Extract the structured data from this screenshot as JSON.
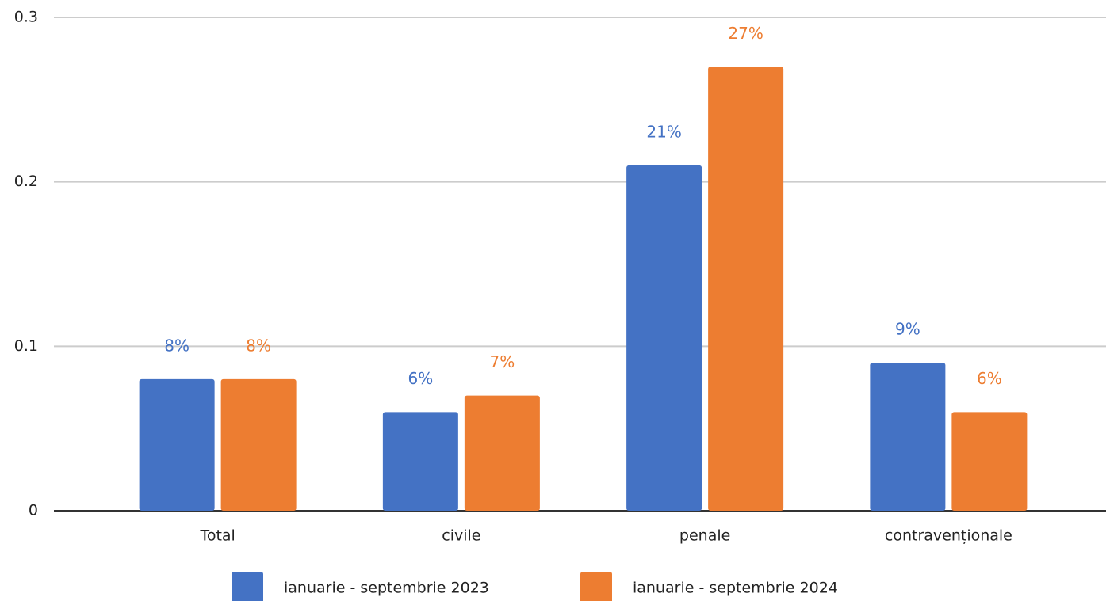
{
  "chart_data": {
    "type": "bar",
    "categories": [
      "Total",
      "civile",
      "penale",
      "contravenționale"
    ],
    "series": [
      {
        "name": "ianuarie - septembrie 2023",
        "color": "#4472c4",
        "values": [
          0.08,
          0.06,
          0.21,
          0.09
        ],
        "value_labels": [
          "8%",
          "6%",
          "21%",
          "9%"
        ]
      },
      {
        "name": "ianuarie - septembrie 2024",
        "color": "#ed7d31",
        "values": [
          0.08,
          0.07,
          0.27,
          0.06
        ],
        "value_labels": [
          "8%",
          "7%",
          "27%",
          "6%"
        ]
      }
    ],
    "ylim": [
      0,
      0.3
    ],
    "yticks": [
      0,
      0.1,
      0.2,
      0.3
    ],
    "grid": true,
    "legend": "bottom"
  }
}
